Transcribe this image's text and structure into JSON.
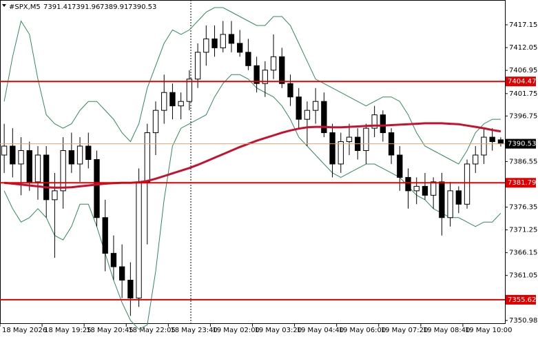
{
  "chart_data": {
    "type": "candlestick",
    "symbol": "#SPX,M5",
    "categories": [
      "18 May 2026",
      null,
      null,
      null,
      null,
      "18 May 19:25",
      null,
      null,
      null,
      null,
      "18 May 20:45",
      null,
      null,
      null,
      null,
      "18 May 22:05",
      null,
      null,
      null,
      null,
      "18 May 23:40",
      null,
      null,
      null,
      null,
      "19 May 02:00",
      null,
      null,
      null,
      null,
      "19 May 03:20",
      null,
      null,
      null,
      null,
      "19 May 04:40",
      null,
      null,
      null,
      null,
      "19 May 06:00",
      null,
      null,
      null,
      null,
      "19 May 07:20",
      null,
      null,
      null,
      null,
      "19 May 08:40",
      null,
      null,
      null,
      null,
      "19 May 10:00",
      null,
      null,
      null,
      null
    ],
    "candles": {
      "open": [
        7388,
        7390,
        7386,
        7389,
        7382,
        7388,
        7378,
        7380,
        7389,
        7386,
        7390,
        7387,
        7374,
        7366,
        7363,
        7360,
        7356,
        7382,
        7393,
        7398,
        7402,
        7399,
        7400,
        7405,
        7411,
        7414,
        7412,
        7415,
        7413,
        7411,
        7408,
        7404,
        7407,
        7410,
        7404,
        7401,
        7396,
        7398,
        7400,
        7393,
        7386,
        7391,
        7392,
        7389,
        7394,
        7397,
        7393,
        7388,
        7383,
        7380,
        7381,
        7379,
        7382,
        7374,
        7380,
        7377,
        7386,
        7388,
        7392,
        7391.41
      ],
      "high": [
        7395,
        7394,
        7392,
        7391,
        7390,
        7390,
        7384,
        7392,
        7393,
        7392,
        7393,
        7389,
        7378,
        7370,
        7368,
        7364,
        7385,
        7395,
        7400,
        7406,
        7404,
        7402,
        7407,
        7413,
        7417,
        7417,
        7418,
        7418,
        7416,
        7414,
        7410,
        7409,
        7415,
        7412,
        7406,
        7403,
        7400,
        7403,
        7402,
        7395,
        7393,
        7395,
        7394,
        7395,
        7399,
        7398,
        7394,
        7390,
        7385,
        7383,
        7384,
        7383,
        7384,
        7382,
        7381,
        7387,
        7390,
        7394,
        7394,
        7391.96
      ],
      "low": [
        7384,
        7383,
        7379,
        7380,
        7378,
        7374,
        7365,
        7376,
        7384,
        7382,
        7385,
        7372,
        7362,
        7360,
        7356,
        7352,
        7354,
        7368,
        7388,
        7395,
        7396,
        7396,
        7398,
        7403,
        7408,
        7410,
        7411,
        7411,
        7410,
        7407,
        7402,
        7401,
        7405,
        7403,
        7399,
        7394,
        7390,
        7395,
        7392,
        7383,
        7384,
        7388,
        7387,
        7386,
        7392,
        7391,
        7386,
        7380,
        7376,
        7377,
        7378,
        7376,
        7370,
        7372,
        7375,
        7376,
        7384,
        7386,
        7389,
        7389.91
      ],
      "close": [
        7390,
        7386,
        7389,
        7382,
        7388,
        7378,
        7380,
        7389,
        7386,
        7390,
        7387,
        7374,
        7366,
        7363,
        7360,
        7356,
        7382,
        7393,
        7398,
        7402,
        7399,
        7400,
        7405,
        7411,
        7414,
        7412,
        7415,
        7413,
        7411,
        7408,
        7404,
        7407,
        7410,
        7404,
        7401,
        7396,
        7398,
        7400,
        7393,
        7386,
        7391,
        7392,
        7389,
        7394,
        7397,
        7393,
        7388,
        7383,
        7380,
        7381,
        7379,
        7382,
        7374,
        7380,
        7377,
        7386,
        7388,
        7392,
        7391,
        7390.53
      ]
    },
    "series": [
      {
        "color": "#c8102e",
        "values": [
          7381.8,
          7381.6,
          7381.4,
          7381.2,
          7381.0,
          7380.8,
          7380.7,
          7380.7,
          7380.8,
          7381.0,
          7381.2,
          7381.4,
          7381.6,
          7381.7,
          7381.8,
          7381.8,
          7381.9,
          7382.2,
          7382.7,
          7383.3,
          7383.9,
          7384.5,
          7385.1,
          7385.8,
          7386.6,
          7387.4,
          7388.2,
          7389.0,
          7389.8,
          7390.5,
          7391.2,
          7391.8,
          7392.4,
          7393.0,
          7393.5,
          7393.9,
          7394.2,
          7394.3,
          7394.3,
          7394.2,
          7394.2,
          7394.3,
          7394.4,
          7394.5,
          7394.6,
          7394.6,
          7394.7,
          7394.8,
          7394.9,
          7395.0,
          7395.1,
          7395.1,
          7395.1,
          7395.0,
          7394.9,
          7394.6,
          7394.3,
          7394.0,
          7393.6,
          7393.3
        ]
      },
      {
        "color": "#2e8b57",
        "values": [
          7400,
          7410,
          7418,
          7415,
          7405,
          7397,
          7395,
          7394,
          7395,
          7398,
          7400,
          7400,
          7398,
          7396,
          7393,
          7391,
          7395,
          7403,
          7408,
          7413,
          7416,
          7415,
          7416,
          7418,
          7420,
          7421,
          7421,
          7420,
          7419,
          7418,
          7417,
          7417,
          7419,
          7419,
          7417,
          7413,
          7409,
          7405,
          7404,
          7403,
          7402,
          7401,
          7400,
          7399,
          7400,
          7401,
          7401,
          7400,
          7397,
          7393,
          7390,
          7389,
          7388,
          7387,
          7386,
          7389,
          7393,
          7395,
          7396,
          7396
        ]
      },
      {
        "color": "#2e8b57",
        "values": [
          7380,
          7376,
          7373,
          7374,
          7376,
          7374,
          7370,
          7369,
          7372,
          7377,
          7377,
          7372,
          7366,
          7360,
          7355,
          7351,
          7349,
          7350,
          7362,
          7378,
          7390,
          7394,
          7395,
          7396,
          7397,
          7401,
          7404,
          7406,
          7406,
          7405,
          7403,
          7402,
          7401,
          7399,
          7396,
          7392,
          7390,
          7388,
          7386,
          7384,
          7383,
          7384,
          7385,
          7386,
          7386,
          7385,
          7384,
          7383,
          7381,
          7379,
          7378,
          7376,
          7375,
          7374,
          7374,
          7373,
          7372,
          7373,
          7373,
          7375
        ]
      }
    ],
    "levels": [
      7404.47,
      7381.79,
      7355.62
    ],
    "level_color": "#e00000",
    "ylim": [
      7350.21,
      7422.7
    ],
    "yticks": [
      7417.15,
      7412.05,
      7406.95,
      7401.75,
      7396.75,
      7386.55,
      7376.35,
      7371.25,
      7366.15,
      7361.05,
      7350.98
    ]
  }
}
